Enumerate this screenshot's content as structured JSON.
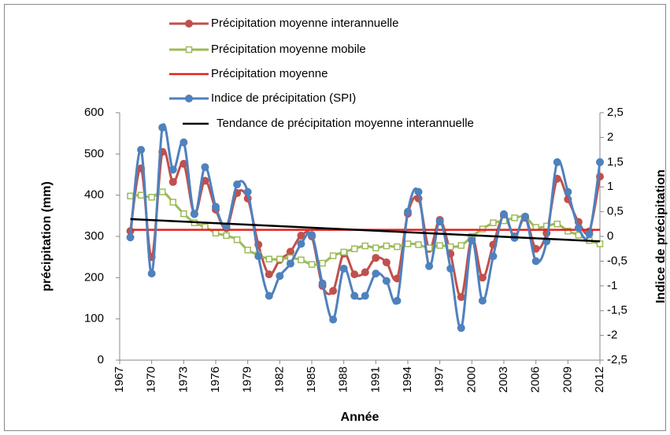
{
  "chart_data": {
    "type": "line",
    "x_label": "Année",
    "y_label": "précipitation (mm)",
    "y2_label": "Indice de précipitation",
    "x": [
      1968,
      1969,
      1970,
      1971,
      1972,
      1973,
      1974,
      1975,
      1976,
      1977,
      1978,
      1979,
      1980,
      1981,
      1982,
      1983,
      1984,
      1985,
      1986,
      1987,
      1988,
      1989,
      1990,
      1991,
      1992,
      1993,
      1994,
      1995,
      1996,
      1997,
      1998,
      1999,
      2000,
      2001,
      2002,
      2003,
      2004,
      2005,
      2006,
      2007,
      2008,
      2009,
      2010,
      2011,
      2012
    ],
    "series": [
      {
        "name": "Précipitation moyenne interannuelle",
        "color": "#c0504d",
        "marker": "circle",
        "values": [
          313,
          465,
          250,
          505,
          432,
          476,
          355,
          435,
          365,
          320,
          405,
          392,
          280,
          208,
          243,
          263,
          302,
          300,
          180,
          168,
          258,
          208,
          213,
          248,
          237,
          198,
          355,
          392,
          270,
          340,
          258,
          153,
          297,
          200,
          280,
          350,
          300,
          345,
          270,
          308,
          440,
          390,
          335,
          312,
          445
        ]
      },
      {
        "name": "Précipitation moyenne mobile",
        "color": "#9bbb59",
        "marker": "square",
        "values": [
          398,
          400,
          395,
          408,
          383,
          355,
          333,
          323,
          308,
          302,
          292,
          267,
          255,
          245,
          245,
          248,
          243,
          232,
          235,
          253,
          262,
          270,
          277,
          272,
          277,
          275,
          282,
          280,
          272,
          278,
          275,
          278,
          300,
          318,
          333,
          338,
          345,
          347,
          322,
          325,
          330,
          313,
          303,
          290,
          282
        ]
      },
      {
        "name": "Précipitation moyenne",
        "color": "#e0201b",
        "marker": "none",
        "values": [
          316,
          316,
          316,
          316,
          316,
          316,
          316,
          316,
          316,
          316,
          316,
          316,
          316,
          316,
          316,
          316,
          316,
          316,
          316,
          316,
          316,
          316,
          316,
          316,
          316,
          316,
          316,
          316,
          316,
          316,
          316,
          316,
          316,
          316,
          316,
          316,
          316,
          316,
          316,
          316,
          316,
          316,
          316,
          316,
          316
        ]
      },
      {
        "name": "Indice de précipitation (SPI)",
        "color": "#4f81bd",
        "marker": "circle",
        "axis": "y2",
        "values": [
          -0.02,
          1.75,
          -0.75,
          2.2,
          1.35,
          1.9,
          0.45,
          1.4,
          0.6,
          0.2,
          1.05,
          0.9,
          -0.4,
          -1.2,
          -0.8,
          -0.55,
          -0.15,
          0.03,
          -0.95,
          -1.68,
          -0.65,
          -1.2,
          -1.2,
          -0.75,
          -0.9,
          -1.3,
          0.5,
          0.9,
          -0.6,
          0.3,
          -0.65,
          -1.85,
          -0.08,
          -1.3,
          -0.4,
          0.45,
          -0.03,
          0.4,
          -0.5,
          -0.1,
          1.5,
          0.9,
          0.17,
          0.05,
          1.5
        ]
      },
      {
        "name": "Tendance de précipitation moyenne interannuelle",
        "color": "#000000",
        "marker": "none",
        "x": [
          1968,
          2012
        ],
        "values": [
          342,
          288
        ]
      }
    ],
    "xlim": [
      1967,
      2012
    ],
    "xticks": [
      1967,
      1970,
      1973,
      1976,
      1979,
      1982,
      1985,
      1988,
      1991,
      1994,
      1997,
      2000,
      2003,
      2006,
      2009,
      2012
    ],
    "ylim": [
      0,
      600
    ],
    "yticks": [
      0,
      100,
      200,
      300,
      400,
      500,
      600
    ],
    "y2lim": [
      -2.5,
      2.5
    ],
    "y2ticks": [
      {
        "value": -2.5,
        "label": "-2,5"
      },
      -2,
      {
        "value": -1.5,
        "label": "-1,5"
      },
      -1,
      {
        "value": -0.5,
        "label": "-0,5"
      },
      0,
      {
        "value": 0.5,
        "label": "0,5"
      },
      1,
      {
        "value": 1.5,
        "label": "1,5"
      },
      2,
      {
        "value": 2.5,
        "label": "2,5"
      }
    ]
  }
}
